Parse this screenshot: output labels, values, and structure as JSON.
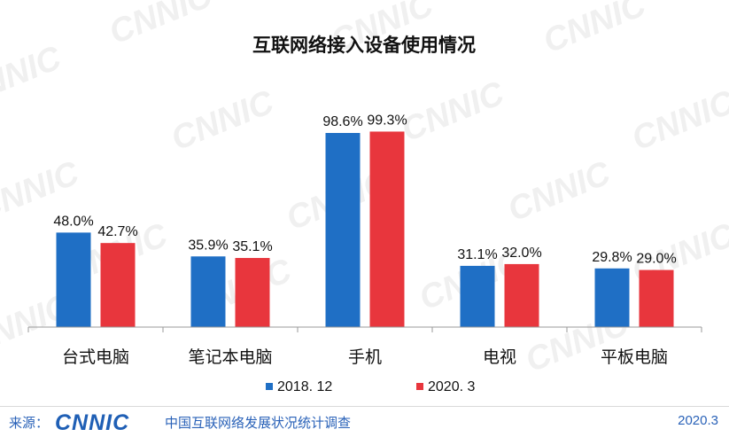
{
  "chart_data": {
    "type": "bar",
    "title": "互联网络接入设备使用情况",
    "categories": [
      "台式电脑",
      "笔记本电脑",
      "手机",
      "电视",
      "平板电脑"
    ],
    "series": [
      {
        "name": "2018. 12",
        "values": [
          48.0,
          35.9,
          98.6,
          31.1,
          29.8
        ],
        "labels": [
          "48.0%",
          "35.9%",
          "98.6%",
          "31.1%",
          "29.8%"
        ],
        "color": "#1f6fc5"
      },
      {
        "name": "2020. 3",
        "values": [
          42.7,
          35.1,
          99.3,
          32.0,
          29.0
        ],
        "labels": [
          "42.7%",
          "35.1%",
          "99.3%",
          "32.0%",
          "29.0%"
        ],
        "color": "#e8363d"
      }
    ],
    "ylim": [
      0,
      100
    ],
    "grid": false,
    "legend": "bottom",
    "watermark": "CNNIC"
  },
  "footer": {
    "source_label": "来源：",
    "logo_text": "CNNIC",
    "source_name": "中国互联网络发展状况统计调查",
    "date": "2020.3"
  }
}
